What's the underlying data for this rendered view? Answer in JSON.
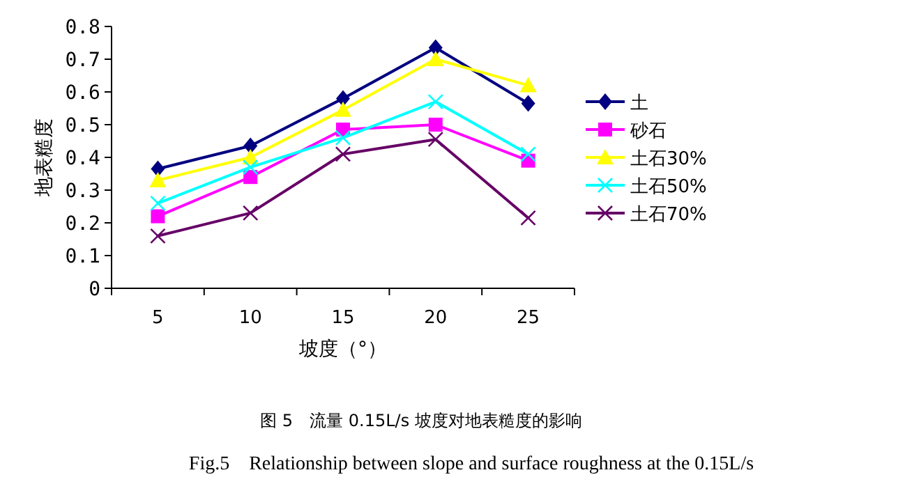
{
  "chart_data": {
    "type": "line",
    "xlabel": "坡度（°）",
    "ylabel": "地表糙度",
    "categories": [
      "5",
      "10",
      "15",
      "20",
      "25"
    ],
    "ylim": [
      0,
      0.8
    ],
    "yticks": [
      0,
      0.1,
      0.2,
      0.3,
      0.4,
      0.5,
      0.6,
      0.7,
      0.8
    ],
    "grid": false,
    "legend": "right",
    "line_style": "solid",
    "series": [
      {
        "name": "土",
        "color": "#000080",
        "marker": "diamond",
        "values": [
          0.365,
          0.435,
          0.58,
          0.735,
          0.565
        ]
      },
      {
        "name": "砂石",
        "color": "#ff00ff",
        "marker": "square",
        "values": [
          0.22,
          0.34,
          0.485,
          0.5,
          0.39
        ]
      },
      {
        "name": "土石30%",
        "color": "#ffff00",
        "marker": "triangle",
        "values": [
          0.33,
          0.4,
          0.545,
          0.7,
          0.62
        ]
      },
      {
        "name": "土石50%",
        "color": "#00ffff",
        "marker": "cross",
        "values": [
          0.26,
          0.37,
          0.46,
          0.57,
          0.41
        ]
      },
      {
        "name": "土石70%",
        "color": "#660066",
        "marker": "cross",
        "values": [
          0.16,
          0.23,
          0.41,
          0.455,
          0.215
        ]
      }
    ],
    "annotations": [
      "图 5　流量 0.15L/s 坡度对地表糙度的影响",
      "Fig.5　Relationship between slope and surface roughness at the 0.15L/s"
    ]
  }
}
